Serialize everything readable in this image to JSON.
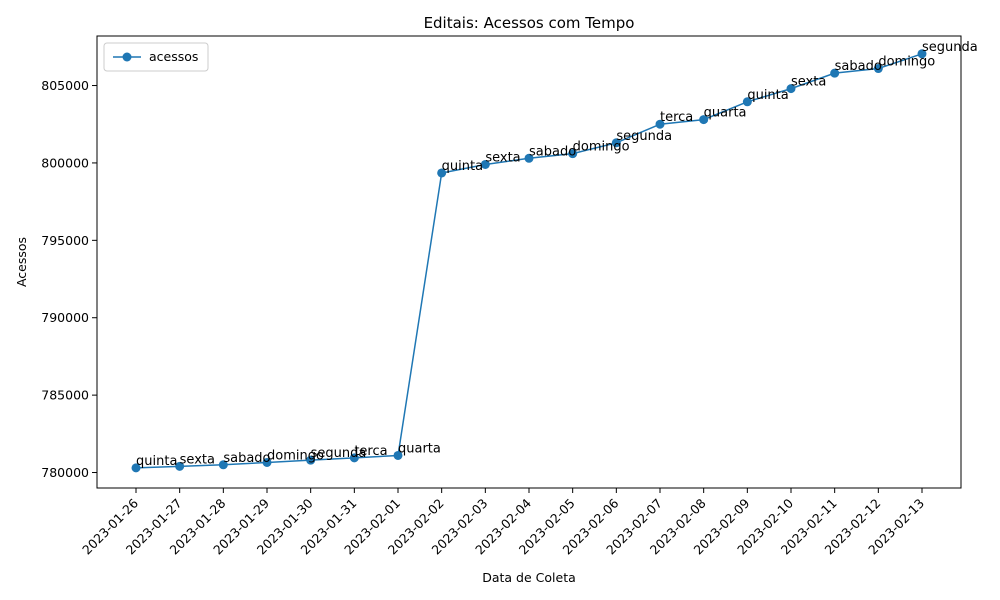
{
  "chart_data": {
    "type": "line",
    "title": "Editais: Acessos com Tempo",
    "xlabel": "Data de Coleta",
    "ylabel": "Acessos",
    "x": [
      "2023-01-26",
      "2023-01-27",
      "2023-01-28",
      "2023-01-29",
      "2023-01-30",
      "2023-01-31",
      "2023-02-01",
      "2023-02-02",
      "2023-02-03",
      "2023-02-04",
      "2023-02-05",
      "2023-02-06",
      "2023-02-07",
      "2023-02-08",
      "2023-02-09",
      "2023-02-10",
      "2023-02-11",
      "2023-02-12",
      "2023-02-13"
    ],
    "ylim": [
      779000,
      808200
    ],
    "yticks": [
      780000,
      785000,
      790000,
      795000,
      800000,
      805000
    ],
    "series": [
      {
        "name": "acessos",
        "color": "#1f77b4",
        "marker": "circle",
        "values": [
          780300,
          780400,
          780500,
          780650,
          780800,
          780950,
          781100,
          799350,
          799900,
          800300,
          800600,
          801300,
          802500,
          802800,
          803950,
          804800,
          805800,
          806100,
          807050
        ],
        "annotations": [
          "quinta",
          "sexta",
          "sabado",
          "domingo",
          "segunda",
          "terca",
          "quarta",
          "quinta",
          "sexta",
          "sabado",
          "domingo",
          "segunda",
          "terca",
          "quarta",
          "quinta",
          "sexta",
          "sabado",
          "domingo",
          "segunda"
        ]
      }
    ],
    "legend": {
      "position": "top-left",
      "entries": [
        "acessos"
      ]
    },
    "grid": false
  }
}
